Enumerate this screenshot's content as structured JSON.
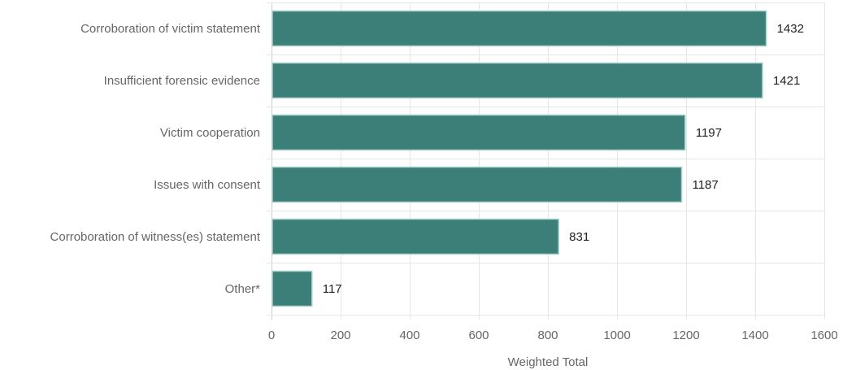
{
  "chart_data": {
    "type": "bar",
    "orientation": "horizontal",
    "categories": [
      "Corroboration of victim statement",
      "Insufficient forensic evidence",
      "Victim cooperation",
      "Issues with consent",
      "Corroboration of witness(es) statement",
      "Other*"
    ],
    "values": [
      1432,
      1421,
      1197,
      1187,
      831,
      117
    ],
    "data_labels": [
      "1432",
      "1421",
      "1197",
      "1187",
      "831",
      "117"
    ],
    "xlabel": "Weighted Total",
    "ylabel": "",
    "xlim": [
      0,
      1600
    ],
    "xticks": [
      0,
      200,
      400,
      600,
      800,
      1000,
      1200,
      1400,
      1600
    ],
    "xtick_labels": [
      "0",
      "200",
      "400",
      "600",
      "800",
      "1000",
      "1200",
      "1400",
      "1600"
    ],
    "grid": true,
    "legend": "none",
    "colors": {
      "bar_fill": "#3b7f78",
      "bar_stroke": "#a9cfcb"
    }
  }
}
